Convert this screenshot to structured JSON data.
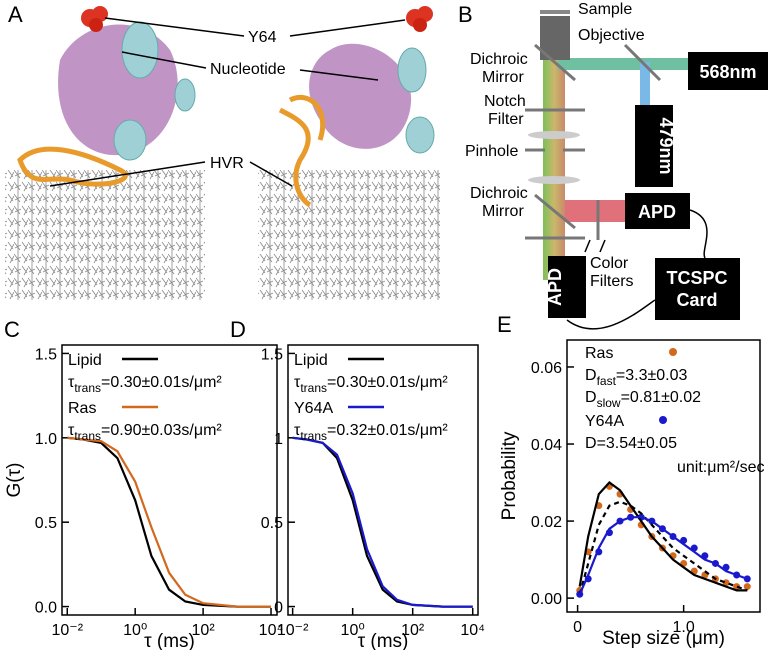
{
  "panels": {
    "A": {
      "label": "A",
      "y64": "Y64",
      "nucleotide": "Nucleotide",
      "hvr": "HVR"
    },
    "B": {
      "label": "B",
      "sample": "Sample",
      "objective": "Objective",
      "dichroic_top": [
        "Dichroic",
        "Mirror"
      ],
      "notch": [
        "Notch",
        "Filter"
      ],
      "pinhole": "Pinhole",
      "dichroic_bottom": [
        "Dichroic",
        "Mirror"
      ],
      "laser_568": "568nm",
      "laser_479": "479nm",
      "apd_right": "APD",
      "apd_bottom": "APD",
      "tcspc": [
        "TCSPC",
        "Card"
      ],
      "color_filters": [
        "Color",
        "Filters"
      ]
    }
  },
  "chart_data": [
    {
      "type": "line",
      "panel_label": "C",
      "ylabel": "G(τ)",
      "xlabel": "τ (ms)",
      "xlog": true,
      "xlim": [
        0.007,
        15000
      ],
      "xticks": [
        {
          "value": 0.01,
          "label": "10⁻²"
        },
        {
          "value": 1,
          "label": "10⁰"
        },
        {
          "value": 100,
          "label": "10²"
        },
        {
          "value": 10000,
          "label": "10⁴"
        }
      ],
      "ylim": [
        -0.05,
        1.55
      ],
      "yticks": [
        {
          "value": 0,
          "label": "0.0"
        },
        0.5,
        {
          "value": 1,
          "label": "1.0"
        },
        1.5
      ],
      "x": [
        0.01,
        0.03,
        0.1,
        0.3,
        1,
        3,
        10,
        30,
        100,
        1000,
        10000
      ],
      "series": [
        {
          "name": "Lipid",
          "color": "#000000",
          "annotation": {
            "symbol": "τ",
            "sub": "trans",
            "text": "=0.30±0.01s/μm²"
          },
          "values": [
            1.0,
            0.99,
            0.97,
            0.88,
            0.63,
            0.3,
            0.1,
            0.03,
            0.01,
            0.0,
            0.0
          ]
        },
        {
          "name": "Ras",
          "color": "#d2691e",
          "annotation": {
            "symbol": "τ",
            "sub": "trans",
            "text": "=0.90±0.03s/μm²"
          },
          "values": [
            1.0,
            0.99,
            0.98,
            0.92,
            0.74,
            0.47,
            0.2,
            0.07,
            0.02,
            0.0,
            0.0
          ]
        }
      ]
    },
    {
      "type": "line",
      "panel_label": "D",
      "xlabel": "τ (ms)",
      "xlog": true,
      "xlim": [
        0.007,
        15000
      ],
      "xticks": [
        {
          "value": 0.01,
          "label": "10⁻²"
        },
        {
          "value": 1,
          "label": "10⁰"
        },
        {
          "value": 100,
          "label": "10²"
        },
        {
          "value": 10000,
          "label": "10⁴"
        }
      ],
      "ylim": [
        -0.05,
        1.55
      ],
      "yticks": [
        0,
        0.5,
        1,
        1.5
      ],
      "x": [
        0.01,
        0.03,
        0.1,
        0.3,
        1,
        3,
        10,
        30,
        100,
        1000,
        10000
      ],
      "series": [
        {
          "name": "Lipid",
          "color": "#000000",
          "annotation": {
            "symbol": "τ",
            "sub": "trans",
            "text": "=0.30±0.01s/μm²"
          },
          "values": [
            1.0,
            0.99,
            0.97,
            0.88,
            0.63,
            0.3,
            0.1,
            0.03,
            0.01,
            0.0,
            0.0
          ]
        },
        {
          "name": "Y64A",
          "color": "#1a1acc",
          "annotation": {
            "symbol": "τ",
            "sub": "trans",
            "text": "=0.32±0.01s/μm²"
          },
          "values": [
            1.0,
            0.99,
            0.97,
            0.9,
            0.67,
            0.34,
            0.12,
            0.04,
            0.01,
            0.0,
            0.0
          ]
        }
      ]
    },
    {
      "type": "scatter",
      "panel_label": "E",
      "ylabel": "Probability",
      "xlabel": "Step size (μm)",
      "xlim": [
        -0.1,
        1.72
      ],
      "xticks": [
        0,
        {
          "value": 1,
          "label": "1.0"
        }
      ],
      "ylim": [
        -0.0036,
        0.067
      ],
      "yticks": [
        {
          "value": 0,
          "label": "0.00"
        },
        {
          "value": 0.02,
          "label": "0.02"
        },
        {
          "value": 0.04,
          "label": "0.04"
        },
        {
          "value": 0.06,
          "label": "0.06"
        }
      ],
      "x": [
        0.02,
        0.1,
        0.2,
        0.3,
        0.4,
        0.5,
        0.6,
        0.7,
        0.8,
        0.9,
        1.0,
        1.1,
        1.2,
        1.3,
        1.4,
        1.5,
        1.6
      ],
      "series": [
        {
          "name": "Ras",
          "color": "#d2691e",
          "annotation": [
            {
              "symbol": "D",
              "sub": "fast",
              "text": "=3.3±0.03"
            },
            {
              "symbol": "D",
              "sub": "slow",
              "text": "=0.81±0.02"
            }
          ],
          "values": [
            0.002,
            0.012,
            0.024,
            0.029,
            0.027,
            0.023,
            0.019,
            0.016,
            0.013,
            0.011,
            0.009,
            0.007,
            0.006,
            0.005,
            0.004,
            0.003,
            0.003
          ]
        },
        {
          "name": "Y64A",
          "color": "#1a1acc",
          "annotation": [
            {
              "symbol": "D",
              "text": "=3.54±0.05"
            }
          ],
          "values": [
            0.001,
            0.005,
            0.012,
            0.017,
            0.02,
            0.021,
            0.021,
            0.02,
            0.018,
            0.016,
            0.015,
            0.013,
            0.011,
            0.009,
            0.008,
            0.006,
            0.005
          ]
        }
      ],
      "fits": [
        {
          "color": "#000000",
          "dash": false,
          "values": [
            0.003,
            0.016,
            0.027,
            0.03,
            0.028,
            0.024,
            0.02,
            0.016,
            0.013,
            0.01,
            0.008,
            0.006,
            0.005,
            0.004,
            0.003,
            0.002,
            0.002
          ]
        },
        {
          "color": "#000000",
          "dash": true,
          "values": [
            0.001,
            0.009,
            0.019,
            0.024,
            0.025,
            0.024,
            0.022,
            0.019,
            0.016,
            0.013,
            0.011,
            0.009,
            0.007,
            0.005,
            0.004,
            0.003,
            0.002
          ]
        },
        {
          "color": "#1a1acc",
          "dash": false,
          "values": [
            0.001,
            0.006,
            0.013,
            0.018,
            0.02,
            0.021,
            0.021,
            0.02,
            0.018,
            0.016,
            0.014,
            0.012,
            0.01,
            0.009,
            0.007,
            0.006,
            0.005
          ]
        }
      ],
      "unit": "unit:μm²/sec"
    }
  ]
}
